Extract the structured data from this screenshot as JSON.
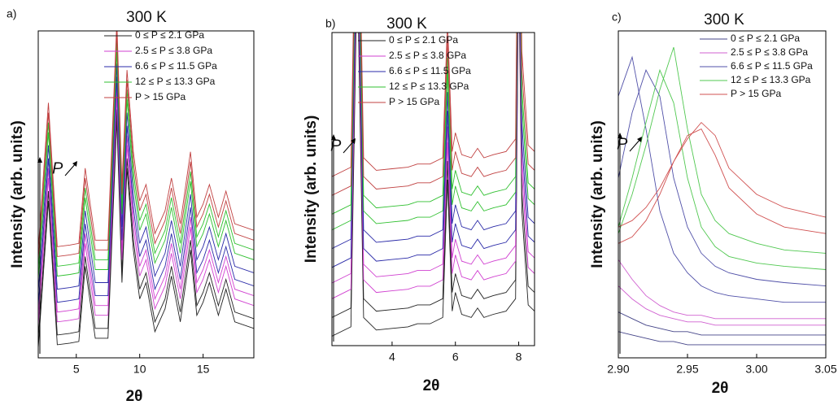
{
  "chart_data": [
    {
      "type": "line",
      "panel_label": "a)",
      "title": "300 K",
      "xlabel": "2θ",
      "ylabel": "Intensity (arb. units)",
      "annotation": "P",
      "xlim": [
        2,
        19
      ],
      "xticks": [
        5,
        10,
        15
      ],
      "ylim": [
        0,
        100
      ],
      "x": [
        2,
        2.8,
        3.5,
        4.5,
        5.2,
        5.7,
        6.5,
        7.5,
        8.2,
        8.6,
        9.0,
        9.5,
        10.0,
        10.5,
        11.2,
        12.0,
        12.5,
        13.2,
        14.0,
        14.5,
        15.0,
        15.5,
        16.2,
        16.8,
        17.5,
        19
      ],
      "series": [
        {
          "name": "0 ≤ P ≤  2.1 GPa",
          "color": "#222222",
          "traces": [
            [
              3,
              48,
              4,
              4.5,
              5,
              28,
              6,
              6,
              73,
              23,
              58,
              33,
              18,
              23,
              8,
              15,
              25,
              11,
              33,
              13,
              17,
              23,
              13,
              21,
              11,
              9
            ],
            [
              6,
              51,
              7,
              7.5,
              8,
              31,
              9,
              9,
              76,
              26,
              61,
              36,
              21,
              26,
              11,
              18,
              28,
              14,
              36,
              16,
              20,
              26,
              16,
              24,
              14,
              12
            ]
          ]
        },
        {
          "name": "2.5 ≤ P ≤  3.8 GPa",
          "color": "#d040d0",
          "traces": [
            [
              10,
              55,
              11,
              11.5,
              12,
              35,
              13,
              13,
              80,
              30,
              65,
              40,
              25,
              30,
              15,
              22,
              32,
              18,
              40,
              20,
              24,
              30,
              20,
              28,
              18,
              16
            ],
            [
              13,
              58,
              14,
              14.5,
              15,
              38,
              16,
              16,
              83,
              33,
              68,
              43,
              28,
              33,
              18,
              25,
              35,
              21,
              43,
              23,
              27,
              33,
              23,
              31,
              21,
              19
            ]
          ]
        },
        {
          "name": "6.6 ≤ P ≤  11.5 GPa",
          "color": "#2a2aa8",
          "traces": [
            [
              16,
              61,
              17,
              17.5,
              18,
              41,
              19,
              19,
              86,
              36,
              71,
              46,
              31,
              36,
              21,
              28,
              38,
              24,
              46,
              26,
              30,
              36,
              26,
              34,
              24,
              22
            ],
            [
              20,
              65,
              21,
              21.5,
              22,
              45,
              23,
              23,
              90,
              40,
              75,
              50,
              35,
              40,
              25,
              32,
              42,
              28,
              50,
              30,
              34,
              40,
              30,
              38,
              28,
              26
            ]
          ]
        },
        {
          "name": "12  ≤ P ≤  13.3 GPa",
          "color": "#30c030",
          "traces": [
            [
              24,
              69,
              25,
              25.5,
              26,
              49,
              27,
              27,
              94,
              44,
              79,
              54,
              39,
              44,
              29,
              36,
              46,
              32,
              54,
              34,
              38,
              44,
              34,
              42,
              32,
              30
            ],
            [
              27,
              72,
              28,
              28.5,
              29,
              52,
              30,
              30,
              97,
              47,
              82,
              57,
              42,
              47,
              32,
              39,
              49,
              35,
              57,
              37,
              41,
              47,
              37,
              45,
              35,
              33
            ]
          ]
        },
        {
          "name": "P > 15 GPa",
          "color": "#c04040",
          "traces": [
            [
              30,
              75,
              31,
              31.5,
              32,
              55,
              33,
              33,
              100,
              50,
              85,
              60,
              45,
              50,
              35,
              42,
              52,
              38,
              60,
              40,
              44,
              50,
              40,
              48,
              38,
              36
            ],
            [
              33,
              78,
              34,
              34.5,
              35,
              58,
              36,
              36,
              103,
              53,
              88,
              63,
              48,
              53,
              38,
              45,
              55,
              41,
              63,
              43,
              47,
              53,
              43,
              51,
              41,
              39
            ]
          ]
        }
      ]
    },
    {
      "type": "line",
      "panel_label": "b)",
      "title": "300 K",
      "xlabel": "2θ",
      "ylabel": "Intensity (arb. units)",
      "annotation": "P",
      "xlim": [
        2.1,
        8.5
      ],
      "xticks": [
        4,
        6,
        8
      ],
      "ylim": [
        0,
        100
      ],
      "x": [
        2.1,
        2.7,
        2.9,
        3.1,
        3.5,
        4.0,
        4.5,
        4.8,
        5.2,
        5.6,
        5.75,
        5.9,
        6.0,
        6.2,
        6.5,
        6.7,
        6.9,
        7.2,
        7.6,
        7.9,
        8.0,
        8.1,
        8.3,
        8.5
      ],
      "series": [
        {
          "name": "0 ≤ P ≤  2.1 GPa",
          "color": "#222222",
          "traces": [
            [
              3,
              6,
              123,
              9,
              5,
              5.5,
              6,
              7,
              7,
              9,
              53,
              11,
              17,
              10,
              9,
              12,
              9,
              10,
              11,
              15,
              123,
              43,
              13,
              11
            ],
            [
              9,
              12,
              129,
              15,
              11,
              11.5,
              12,
              13,
              13,
              15,
              59,
              17,
              23,
              16,
              15,
              18,
              15,
              16,
              17,
              21,
              129,
              49,
              19,
              17
            ]
          ]
        },
        {
          "name": "2.5 ≤ P ≤  3.8 GPa",
          "color": "#d040d0",
          "traces": [
            [
              15,
              18,
              135,
              21,
              17,
              17.5,
              18,
              19,
              19,
              21,
              65,
              23,
              29,
              22,
              21,
              24,
              21,
              22,
              23,
              27,
              135,
              55,
              25,
              23
            ],
            [
              20,
              23,
              140,
              26,
              22,
              22.5,
              23,
              24,
              24,
              26,
              70,
              28,
              34,
              27,
              26,
              29,
              26,
              27,
              28,
              32,
              140,
              60,
              30,
              28
            ]
          ]
        },
        {
          "name": "6.6 ≤ P ≤  11.5 GPa",
          "color": "#2a2aa8",
          "traces": [
            [
              25,
              28,
              145,
              31,
              27,
              27.5,
              28,
              29,
              29,
              31,
              75,
              33,
              39,
              32,
              31,
              34,
              31,
              32,
              33,
              37,
              145,
              65,
              35,
              33
            ],
            [
              31,
              34,
              151,
              37,
              33,
              33.5,
              34,
              35,
              35,
              37,
              81,
              39,
              45,
              38,
              37,
              40,
              37,
              38,
              39,
              43,
              151,
              71,
              41,
              39
            ]
          ]
        },
        {
          "name": "12  ≤ P ≤  13.3 GPa",
          "color": "#30c030",
          "traces": [
            [
              37,
              40,
              157,
              43,
              39,
              39.5,
              40,
              41,
              41,
              43,
              87,
              45,
              51,
              44,
              43,
              46,
              43,
              44,
              45,
              49,
              157,
              77,
              47,
              45
            ],
            [
              42,
              45,
              162,
              48,
              44,
              44.5,
              45,
              46,
              46,
              48,
              92,
              50,
              56,
              49,
              48,
              51,
              48,
              49,
              50,
              54,
              162,
              82,
              52,
              50
            ]
          ]
        },
        {
          "name": "P > 15 GPa",
          "color": "#c04040",
          "traces": [
            [
              48,
              51,
              168,
              54,
              50,
              50.5,
              51,
              52,
              52,
              54,
              98,
              56,
              62,
              55,
              54,
              57,
              54,
              55,
              56,
              60,
              168,
              88,
              58,
              56
            ],
            [
              54,
              57,
              174,
              60,
              56,
              56.5,
              57,
              58,
              58,
              60,
              104,
              62,
              68,
              61,
              60,
              63,
              60,
              61,
              62,
              66,
              174,
              94,
              64,
              62
            ]
          ]
        }
      ]
    },
    {
      "type": "line",
      "panel_label": "c)",
      "title": "300 K",
      "xlabel": "2θ",
      "ylabel": "Intensity (arb. units)",
      "annotation": "P",
      "xlim": [
        2.9,
        3.05
      ],
      "xticks": [
        {
          "value": 2.9,
          "label": "2.90"
        },
        2.95,
        {
          "value": 3.0,
          "label": "3.00"
        },
        3.05
      ],
      "ylim": [
        0,
        100
      ],
      "x": [
        2.9,
        2.91,
        2.92,
        2.93,
        2.94,
        2.95,
        2.96,
        2.97,
        2.98,
        3.0,
        3.02,
        3.05
      ],
      "series": [
        {
          "name": "0 ≤ P ≤  2.1 GPa",
          "color": "#444488",
          "traces": [
            [
              8,
              7,
              6,
              5,
              5,
              4,
              4,
              4,
              4,
              4,
              4,
              4
            ],
            [
              14,
              12,
              10,
              9,
              8,
              8,
              7,
              7,
              7,
              7,
              7,
              7
            ]
          ]
        },
        {
          "name": "2.5 ≤ P ≤  3.8 GPa",
          "color": "#d060d0",
          "traces": [
            [
              22,
              18,
              15,
              13,
              12,
              11,
              11,
              10,
              10,
              10,
              10,
              10
            ],
            [
              30,
              24,
              19,
              16,
              14,
              13,
              13,
              12,
              12,
              12,
              12,
              12
            ]
          ]
        },
        {
          "name": "6.6 ≤ P ≤  11.5 GPa",
          "color": "#5050a8",
          "traces": [
            [
              80,
              92,
              70,
              45,
              32,
              26,
              22,
              20,
              19,
              18,
              17,
              17
            ],
            [
              55,
              75,
              88,
              80,
              55,
              40,
              32,
              28,
              26,
              24,
              23,
              22
            ]
          ]
        },
        {
          "name": "12  ≤ P ≤  13.3 GPa",
          "color": "#50c850",
          "traces": [
            [
              40,
              55,
              72,
              88,
              78,
              55,
              40,
              34,
              31,
              29,
              28,
              27
            ],
            [
              38,
              50,
              65,
              82,
              95,
              70,
              50,
              42,
              38,
              35,
              33,
              32
            ]
          ]
        },
        {
          "name": "P > 15 GPa",
          "color": "#d05050",
          "traces": [
            [
              35,
              37,
              42,
              50,
              60,
              68,
              70,
              62,
              52,
              44,
              40,
              38
            ],
            [
              40,
              42,
              46,
              52,
              60,
              67,
              72,
              68,
              58,
              50,
              46,
              43
            ]
          ]
        }
      ]
    }
  ]
}
